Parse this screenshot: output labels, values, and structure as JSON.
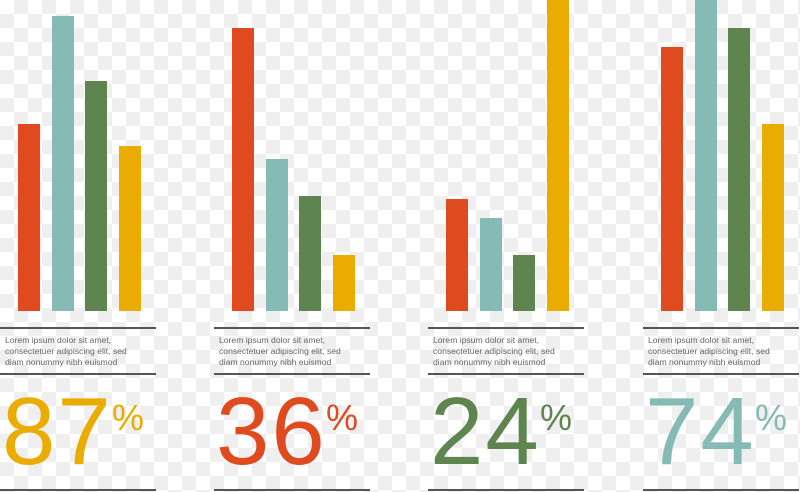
{
  "colors": {
    "red": "#e04a1f",
    "teal": "#86bbb5",
    "green": "#5e854f",
    "yellow": "#eaac00",
    "rule": "#555555",
    "text": "#666666"
  },
  "chart_data": {
    "type": "bar",
    "title": "",
    "value_scale": "relative height, tallest bar = 100",
    "groups": [
      {
        "values": [
          60,
          95,
          74,
          53
        ],
        "percent": "87",
        "percent_sign": "%",
        "percent_color": "yellow",
        "description": [
          "Lorem ipsum dolor sit amet,",
          "consectetuer adipiscing elit, sed",
          "diam nonummy nibh euismod"
        ]
      },
      {
        "values": [
          91,
          49,
          37,
          18
        ],
        "percent": "36",
        "percent_sign": "%",
        "percent_color": "red",
        "description": [
          "Lorem ipsum dolor sit amet,",
          "consectetuer adipiscing elit, sed",
          "diam nonummy nibh euismod"
        ]
      },
      {
        "values": [
          36,
          30,
          18,
          100
        ],
        "percent": "24",
        "percent_sign": "%",
        "percent_color": "green",
        "description": [
          "Lorem ipsum dolor sit amet,",
          "consectetuer adipiscing elit, sed",
          "diam nonummy nibh euismod"
        ]
      },
      {
        "values": [
          85,
          100,
          91,
          60
        ],
        "percent": "74",
        "percent_sign": "%",
        "percent_color": "teal",
        "description": [
          "Lorem ipsum dolor sit amet,",
          "consectetuer adipiscing elit, sed",
          "diam nonummy nibh euismod"
        ]
      }
    ],
    "bar_colors": [
      "red",
      "teal",
      "green",
      "yellow"
    ],
    "grid": false,
    "legend": "none"
  }
}
